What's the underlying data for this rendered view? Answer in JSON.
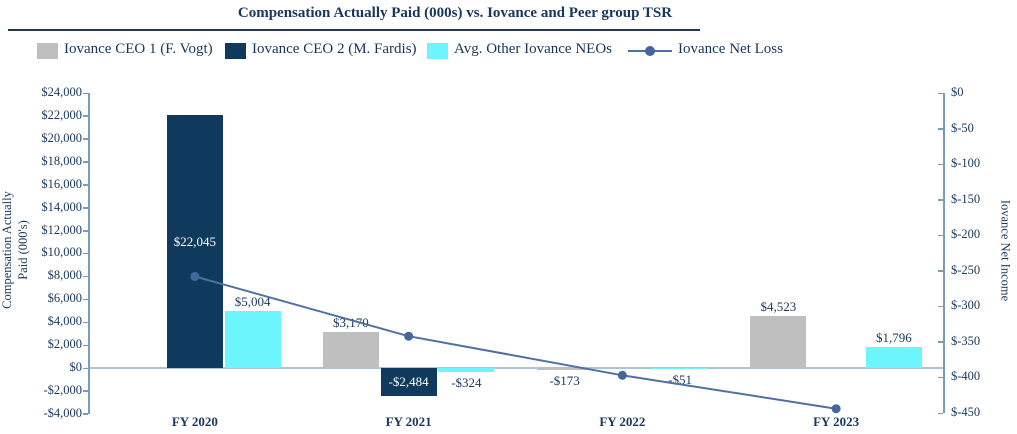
{
  "title": "Compensation Actually Paid (000s) vs. Iovance and Peer group TSR",
  "legend": [
    {
      "label": "Iovance CEO 1 (F. Vogt)",
      "swatch": "gray"
    },
    {
      "label": "Iovance CEO 2 (M. Fardis)",
      "swatch": "navy"
    },
    {
      "label": "Avg. Other Iovance NEOs",
      "swatch": "cyan"
    },
    {
      "label": "Iovance Net Loss",
      "swatch": "line"
    }
  ],
  "colors": {
    "gray": "#bfbfbf",
    "navy": "#103a5d",
    "cyan": "#6cf5fc",
    "line": "#4e70a4",
    "line_dot": "#44669c",
    "text": "#17375e",
    "axis": "#7b9cb5",
    "zero_line": "#a8c6d8"
  },
  "left_axis": {
    "title_line1": "Compensation Actually",
    "title_line2": "Paid (000's)",
    "tick_labels": [
      "$24,000",
      "$22,000",
      "$20,000",
      "$18,000",
      "$16,000",
      "$14,000",
      "$12,000",
      "$10,000",
      "$8,000",
      "$6,000",
      "$4,000",
      "$2,000",
      "$0",
      "-$2,000",
      "-$4,000"
    ],
    "tick_values": [
      24000,
      22000,
      20000,
      18000,
      16000,
      14000,
      12000,
      10000,
      8000,
      6000,
      4000,
      2000,
      0,
      -2000,
      -4000
    ]
  },
  "right_axis": {
    "title": "Iovance Net Income",
    "tick_labels": [
      "$0",
      "$-50",
      "$-100",
      "$-150",
      "$-200",
      "$-250",
      "$-300",
      "$-350",
      "$-400",
      "$-450"
    ],
    "tick_values": [
      0,
      -50,
      -100,
      -150,
      -200,
      -250,
      -300,
      -350,
      -400,
      -450
    ]
  },
  "x_axis": {
    "categories": [
      "FY 2020",
      "FY 2021",
      "FY 2022",
      "FY 2023"
    ]
  },
  "chart_data": {
    "type": "combo bar+line",
    "title": "Compensation Actually Paid (000s) vs. Iovance and Peer group TSR",
    "categories": [
      "FY 2020",
      "FY 2021",
      "FY 2022",
      "FY 2023"
    ],
    "left_axis_label": "Compensation Actually Paid (000's)",
    "right_axis_label": "Iovance Net Income",
    "left_ylim": [
      -4000,
      24000
    ],
    "right_ylim": [
      -450,
      0
    ],
    "grid": false,
    "legend_position": "top",
    "series": [
      {
        "name": "Iovance CEO 1 (F. Vogt)",
        "type": "bar",
        "axis": "left",
        "color_key": "gray",
        "values": [
          null,
          3170,
          -173,
          4523
        ],
        "labels": [
          null,
          "$3,170",
          "-$173",
          "$4,523"
        ],
        "label_pos": [
          null,
          "outside",
          "outside",
          "outside"
        ]
      },
      {
        "name": "Iovance CEO 2 (M. Fardis)",
        "type": "bar",
        "axis": "left",
        "color_key": "navy",
        "values": [
          22045,
          -2484,
          null,
          null
        ],
        "labels": [
          "$22,045",
          "-$2,484",
          null,
          null
        ],
        "label_pos": [
          "inside",
          "inside",
          null,
          null
        ]
      },
      {
        "name": "Avg. Other Iovance NEOs",
        "type": "bar",
        "axis": "left",
        "color_key": "cyan",
        "values": [
          5004,
          -324,
          -51,
          1796
        ],
        "labels": [
          "$5,004",
          "-$324",
          "-$51",
          "$1,796"
        ],
        "label_pos": [
          "outside",
          "outside",
          "outside",
          "outside"
        ]
      },
      {
        "name": "Iovance Net Loss",
        "type": "line",
        "axis": "right",
        "color_key": "line",
        "values": [
          -258,
          -342,
          -397,
          -444
        ],
        "labels": [
          null,
          null,
          null,
          null
        ]
      }
    ]
  }
}
